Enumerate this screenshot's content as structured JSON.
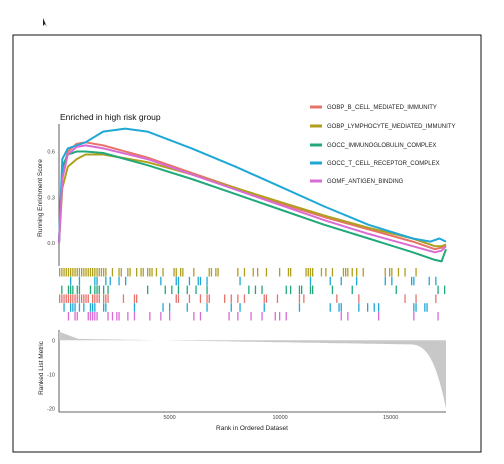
{
  "chart_data": {
    "type": "line",
    "title": "Enriched in high risk group",
    "ylabel": "Running Enrichment Score",
    "ylabel_bottom": "Ranked List Metric",
    "xlabel": "Rank in Ordered Dataset",
    "x_ticks": [
      5000,
      10000,
      15000
    ],
    "y_ticks_top": [
      "0.6",
      "0.3",
      "0.0"
    ],
    "y_ticks_bottom": [
      "0",
      "-10",
      "-20"
    ],
    "xlim": [
      0,
      17500
    ],
    "ylim_top": [
      -0.15,
      0.78
    ],
    "ylim_bottom": [
      -21,
      3
    ],
    "legend_position": "top-right",
    "series": [
      {
        "name": "GOBP_B_CELL_MEDIATED_IMMUNITY",
        "color": "#e8736b",
        "x": [
          0,
          150,
          400,
          800,
          1200,
          2000,
          4000,
          6000,
          8000,
          10000,
          12000,
          14000,
          16000,
          17000,
          17300,
          17500
        ],
        "y": [
          0.0,
          0.45,
          0.6,
          0.65,
          0.66,
          0.64,
          0.56,
          0.46,
          0.36,
          0.26,
          0.17,
          0.09,
          0.01,
          -0.04,
          -0.03,
          -0.01
        ]
      },
      {
        "name": "GOBP_LYMPHOCYTE_MEDIATED_IMMUNITY",
        "color": "#b09f1e",
        "x": [
          0,
          150,
          400,
          800,
          1200,
          2000,
          4000,
          6000,
          8000,
          10000,
          12000,
          14000,
          16000,
          17000,
          17300,
          17500
        ],
        "y": [
          0.0,
          0.36,
          0.5,
          0.55,
          0.58,
          0.58,
          0.53,
          0.45,
          0.36,
          0.27,
          0.18,
          0.1,
          0.03,
          -0.02,
          -0.02,
          -0.01
        ]
      },
      {
        "name": "GOCC_IMMUNOGLOBULIN_COMPLEX",
        "color": "#21a97a",
        "x": [
          0,
          150,
          400,
          800,
          1200,
          2000,
          4000,
          6000,
          8000,
          10000,
          12000,
          14000,
          16000,
          17000,
          17300,
          17500
        ],
        "y": [
          0.0,
          0.5,
          0.58,
          0.6,
          0.6,
          0.59,
          0.51,
          0.42,
          0.32,
          0.22,
          0.12,
          0.03,
          -0.06,
          -0.11,
          -0.12,
          -0.04
        ]
      },
      {
        "name": "GOCC_T_CELL_RECEPTOR_COMPLEX",
        "color": "#1fa8d6",
        "x": [
          0,
          150,
          400,
          800,
          1200,
          2000,
          3000,
          4000,
          6000,
          8000,
          10000,
          12000,
          14000,
          16000,
          16800,
          17200,
          17500
        ],
        "y": [
          0.0,
          0.55,
          0.62,
          0.64,
          0.66,
          0.73,
          0.75,
          0.73,
          0.62,
          0.5,
          0.37,
          0.24,
          0.12,
          0.03,
          0.01,
          0.03,
          0.01
        ]
      },
      {
        "name": "GOMF_ANTIGEN_BINDING",
        "color": "#d96cd4",
        "x": [
          0,
          150,
          400,
          800,
          1200,
          2000,
          4000,
          6000,
          8000,
          10000,
          12000,
          14000,
          16000,
          17000,
          17300,
          17500
        ],
        "y": [
          0.0,
          0.42,
          0.58,
          0.63,
          0.64,
          0.62,
          0.55,
          0.45,
          0.35,
          0.25,
          0.15,
          0.06,
          -0.02,
          -0.06,
          -0.05,
          -0.02
        ]
      }
    ],
    "hit_tracks": [
      {
        "color": "#b09f1e",
        "density": 0.55,
        "start_dense": 0.42
      },
      {
        "color": "#1fa8d6",
        "density": 0.18,
        "start_dense": 0.22
      },
      {
        "color": "#21a97a",
        "density": 0.14,
        "start_dense": 0.18
      },
      {
        "color": "#e8736b",
        "density": 0.22,
        "start_dense": 0.3
      },
      {
        "color": "#1fa8d6",
        "density": 0.14,
        "start_dense": 0.2
      },
      {
        "color": "#d96cd4",
        "density": 0.2,
        "start_dense": 0.3
      }
    ],
    "metric": {
      "fill": "#c8c8c8",
      "start": 2.5,
      "end": -20
    }
  }
}
